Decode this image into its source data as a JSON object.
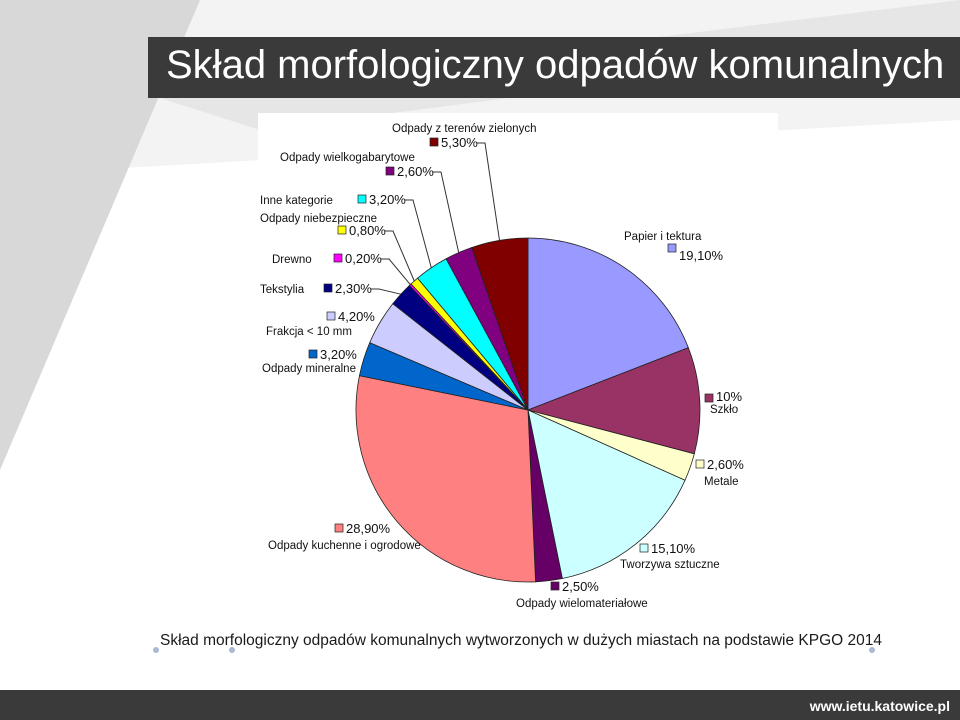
{
  "slide": {
    "title": "Skład morfologiczny odpadów komunalnych",
    "caption": "Skład morfologiczny odpadów komunalnych wytworzonych w dużych miastach na podstawie KPGO 2014",
    "footer_url": "www.ietu.katowice.pl"
  },
  "chart_data": {
    "type": "pie",
    "slices": [
      {
        "label": "Papier i tektura",
        "value_text": "19,10%",
        "value": 19.1,
        "color": "#9999ff"
      },
      {
        "label": "Szkło",
        "value_text": "10%",
        "value": 10.0,
        "color": "#993366"
      },
      {
        "label": "Metale",
        "value_text": "2,60%",
        "value": 2.6,
        "color": "#ffffcc"
      },
      {
        "label": "Tworzywa sztuczne",
        "value_text": "15,10%",
        "value": 15.1,
        "color": "#ccffff"
      },
      {
        "label": "Odpady wielomateriałowe",
        "value_text": "2,50%",
        "value": 2.5,
        "color": "#660066"
      },
      {
        "label": "Odpady kuchenne i ogrodowe",
        "value_text": "28,90%",
        "value": 28.9,
        "color": "#ff8080"
      },
      {
        "label": "Odpady mineralne",
        "value_text": "3,20%",
        "value": 3.2,
        "color": "#0066cc"
      },
      {
        "label": "Frakcja < 10 mm",
        "value_text": "4,20%",
        "value": 4.2,
        "color": "#ccccff"
      },
      {
        "label": "Tekstylia",
        "value_text": "2,30%",
        "value": 2.3,
        "color": "#000080"
      },
      {
        "label": "Drewno",
        "value_text": "0,20%",
        "value": 0.2,
        "color": "#ff00ff"
      },
      {
        "label": "Odpady niebezpieczne",
        "value_text": "0,80%",
        "value": 0.8,
        "color": "#ffff00"
      },
      {
        "label": "Inne kategorie",
        "value_text": "3,20%",
        "value": 3.2,
        "color": "#00ffff"
      },
      {
        "label": "Odpady wielkogabarytowe",
        "value_text": "2,60%",
        "value": 2.6,
        "color": "#800080"
      },
      {
        "label": "Odpady z terenów zielonych",
        "value_text": "5,30%",
        "value": 5.3,
        "color": "#800000"
      }
    ]
  }
}
